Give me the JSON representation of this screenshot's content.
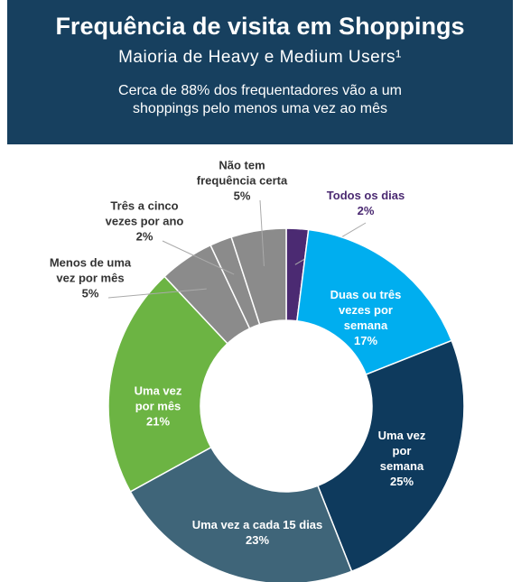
{
  "chart_data": {
    "type": "donut",
    "title": "Frequência de visita em Shoppings",
    "subtitle": "Maioria de Heavy e Medium Users¹",
    "note": "Cerca de 88% dos frequentadores vão a um\nshoppings pelo menos uma vez ao mês",
    "categories": [
      "Todos os dias",
      "Duas ou três\nvezes por\nsemana",
      "Uma vez\npor\nsemana",
      "Uma vez a cada 15 dias",
      "Uma vez\npor mês",
      "Menos de uma\nvez por mês",
      "Três a cinco\nvezes por ano",
      "Não tem\nfrequência certa"
    ],
    "values": [
      2,
      17,
      25,
      23,
      21,
      5,
      2,
      5
    ],
    "value_labels": [
      "2%",
      "17%",
      "25%",
      "23%",
      "21%",
      "5%",
      "2%",
      "5%"
    ],
    "colors": [
      "#4b2a72",
      "#00aeef",
      "#0e3a5d",
      "#3f6579",
      "#6cb443",
      "#8b8b8b",
      "#8b8b8b",
      "#8b8b8b"
    ]
  }
}
